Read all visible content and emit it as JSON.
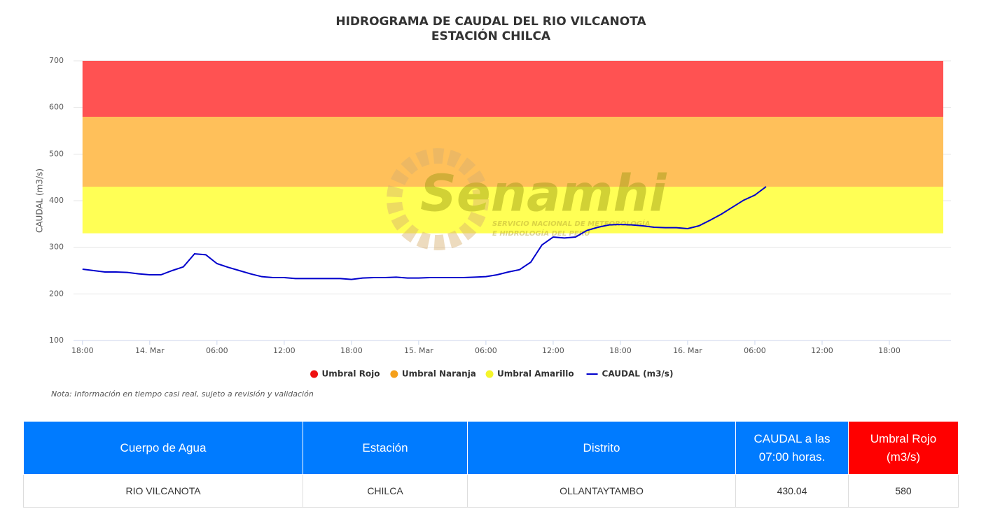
{
  "chart_data": {
    "type": "line",
    "title": "HIDROGRAMA DE CAUDAL DEL RIO VILCANOTA",
    "subtitle": "ESTACIÓN CHILCA",
    "y_label": "CAUDAL (m3/s)",
    "note": "Nota: Información en tiempo casi real, sujeto a revisión y validación",
    "watermark": {
      "name": "Senamhi",
      "line1": "SERVICIO NACIONAL DE METEOROLOGÍA",
      "line2": "E HIDROLOGÍA DEL PERÚ"
    },
    "bands": [
      {
        "name": "Umbral Rojo",
        "color": "#ff5252",
        "legend_color": "#ee1111",
        "from": 580,
        "to": 700
      },
      {
        "name": "Umbral Naranja",
        "color": "#ffc05a",
        "legend_color": "#f5a01a",
        "from": 430,
        "to": 580
      },
      {
        "name": "Umbral Amarillo",
        "color": "#ffff55",
        "legend_color": "#f5f52a",
        "from": 330,
        "to": 430
      }
    ],
    "series": [
      {
        "name": "CAUDAL (m3/s)",
        "color": "#0000cc",
        "x": [
          0,
          1,
          2,
          3,
          4,
          5,
          6,
          7,
          8,
          9,
          10,
          11,
          12,
          13,
          14,
          15,
          16,
          17,
          18,
          19,
          20,
          21,
          22,
          23,
          24,
          25,
          26,
          27,
          28,
          29,
          30,
          31,
          32,
          33,
          34,
          35,
          36,
          37,
          38,
          39,
          40,
          41,
          42,
          43,
          44,
          45,
          46,
          47,
          48,
          49,
          50,
          51,
          52,
          53,
          54,
          55,
          56,
          57,
          58,
          59,
          60,
          61
        ],
        "values": [
          253,
          250,
          247,
          247,
          246,
          243,
          241,
          241,
          250,
          258,
          286,
          284,
          265,
          257,
          250,
          243,
          237,
          235,
          235,
          233,
          233,
          233,
          233,
          233,
          231,
          234,
          235,
          235,
          236,
          234,
          234,
          235,
          235,
          235,
          235,
          236,
          237,
          241,
          247,
          252,
          268,
          305,
          322,
          320,
          322,
          336,
          343,
          348,
          349,
          348,
          346,
          343,
          342,
          342,
          340,
          346,
          358,
          371,
          386,
          401,
          412,
          430.04
        ]
      }
    ],
    "xlim": [
      -0.8,
      77.5
    ],
    "xticks": [
      {
        "value": 0,
        "label": "18:00"
      },
      {
        "value": 6,
        "label": "14. Mar"
      },
      {
        "value": 12,
        "label": "06:00"
      },
      {
        "value": 18,
        "label": "12:00"
      },
      {
        "value": 24,
        "label": "18:00"
      },
      {
        "value": 30,
        "label": "15. Mar"
      },
      {
        "value": 36,
        "label": "06:00"
      },
      {
        "value": 42,
        "label": "12:00"
      },
      {
        "value": 48,
        "label": "18:00"
      },
      {
        "value": 54,
        "label": "16. Mar"
      },
      {
        "value": 60,
        "label": "06:00"
      },
      {
        "value": 66,
        "label": "12:00"
      },
      {
        "value": 72,
        "label": "18:00"
      }
    ],
    "ylim": [
      100,
      700
    ],
    "yticks": [
      100,
      200,
      300,
      400,
      500,
      600,
      700
    ],
    "grid": true
  },
  "table": {
    "header": [
      "Cuerpo de Agua",
      "Estación",
      "Distrito",
      "CAUDAL a las 07:00 horas.",
      "Umbral Rojo (m3/s)"
    ],
    "rows": [
      [
        "RIO VILCANOTA",
        "CHILCA",
        "OLLANTAYTAMBO",
        "430.04",
        "580"
      ]
    ]
  }
}
